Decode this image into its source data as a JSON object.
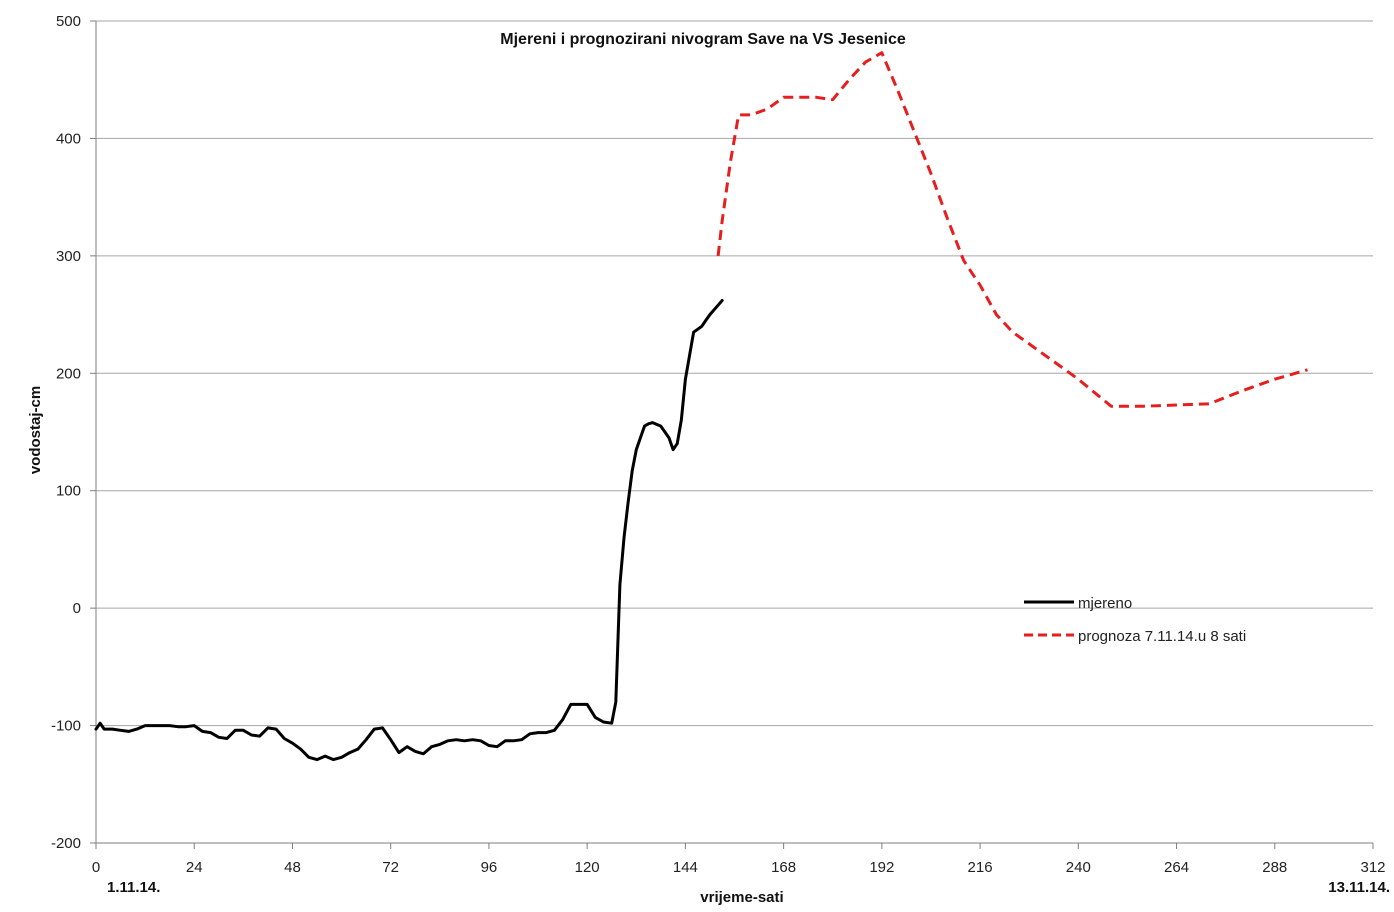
{
  "chart_data": {
    "type": "line",
    "title": "Mjereni i prognozirani nivogram Save na VS Jesenice",
    "xlabel": "vrijeme-sati",
    "ylabel": "vodostaj-cm",
    "xlim": [
      0,
      312
    ],
    "ylim": [
      -200,
      500
    ],
    "xticks": [
      0,
      24,
      48,
      72,
      96,
      120,
      144,
      168,
      192,
      216,
      240,
      264,
      288,
      312
    ],
    "yticks": [
      -200,
      -100,
      0,
      100,
      200,
      300,
      400,
      500
    ],
    "date_start": "1.11.14.",
    "date_end": "13.11.14.",
    "grid": "horizontal",
    "legend_position": "right-middle",
    "series": [
      {
        "name": "mjereno",
        "color": "#000000",
        "style": "solid",
        "x": [
          0,
          1,
          2,
          4,
          6,
          8,
          10,
          12,
          14,
          16,
          18,
          20,
          22,
          24,
          26,
          28,
          30,
          32,
          34,
          36,
          38,
          40,
          42,
          44,
          46,
          48,
          50,
          52,
          54,
          56,
          58,
          60,
          62,
          64,
          66,
          68,
          70,
          72,
          74,
          76,
          78,
          80,
          82,
          84,
          86,
          88,
          90,
          92,
          94,
          96,
          98,
          100,
          102,
          104,
          106,
          108,
          110,
          112,
          114,
          116,
          118,
          120,
          122,
          124,
          126,
          127,
          128,
          129,
          130,
          131,
          132,
          133,
          134,
          135,
          136,
          138,
          140,
          141,
          142,
          143,
          144,
          145,
          146,
          148,
          149,
          150,
          152,
          153
        ],
        "values": [
          -103,
          -98,
          -103,
          -103,
          -104,
          -105,
          -103,
          -100,
          -100,
          -100,
          -100,
          -101,
          -101,
          -100,
          -105,
          -106,
          -110,
          -111,
          -104,
          -104,
          -108,
          -109,
          -102,
          -103,
          -111,
          -115,
          -120,
          -127,
          -129,
          -126,
          -129,
          -127,
          -123,
          -120,
          -112,
          -103,
          -102,
          -112,
          -123,
          -118,
          -122,
          -124,
          -118,
          -116,
          -113,
          -112,
          -113,
          -112,
          -113,
          -117,
          -118,
          -113,
          -113,
          -112,
          -107,
          -106,
          -106,
          -104,
          -95,
          -82,
          -82,
          -82,
          -93,
          -97,
          -98,
          -80,
          20,
          60,
          90,
          117,
          135,
          145,
          155,
          157,
          158,
          155,
          145,
          135,
          140,
          160,
          195,
          215,
          235,
          240,
          245,
          250,
          258,
          262
        ]
      },
      {
        "name": "prognoza 7.11.14.u 8 sati",
        "color": "#e61e1e",
        "style": "dashed",
        "x": [
          152,
          153,
          155,
          157,
          160,
          164,
          168,
          172,
          176,
          180,
          184,
          188,
          192,
          196,
          200,
          204,
          208,
          212,
          216,
          220,
          224,
          228,
          232,
          236,
          240,
          248,
          256,
          264,
          272,
          280,
          288,
          296
        ],
        "values": [
          300,
          330,
          380,
          420,
          420,
          425,
          435,
          435,
          435,
          433,
          450,
          465,
          473,
          440,
          405,
          370,
          332,
          296,
          275,
          250,
          235,
          225,
          215,
          205,
          195,
          172,
          172,
          173,
          174,
          185,
          195,
          203
        ]
      }
    ]
  }
}
